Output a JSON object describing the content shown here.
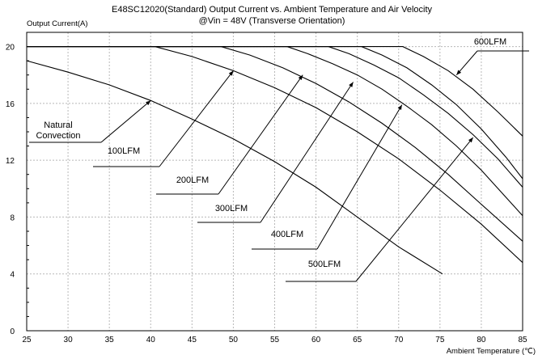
{
  "chart_data": {
    "type": "line",
    "title": "E48SC12020(Standard) Output Current vs. Ambient Temperature and Air Velocity",
    "subtitle": "@Vin = 48V (Transverse Orientation)",
    "xlabel": "Ambient Temperature (℃)",
    "ylabel": "Output Current(A)",
    "xlim": [
      25,
      85
    ],
    "ylim": [
      0,
      21
    ],
    "xticks": [
      "25",
      "30",
      "35",
      "40",
      "45",
      "50",
      "55",
      "60",
      "65",
      "70",
      "75",
      "80",
      "85"
    ],
    "yticks": [
      "0",
      "4",
      "8",
      "12",
      "16",
      "20"
    ],
    "grid": true,
    "series": [
      {
        "name": "Natural Convection",
        "label_lines": [
          "Natural",
          "Convection"
        ],
        "x": [
          25,
          30,
          35,
          40,
          45,
          50,
          55,
          60,
          65,
          70,
          75.3
        ],
        "y": [
          19.0,
          18.2,
          17.3,
          16.2,
          14.9,
          13.5,
          11.9,
          10.1,
          8.0,
          5.9,
          4.0
        ]
      },
      {
        "name": "100LFM",
        "x": [
          25,
          40.5,
          45,
          50,
          55,
          60,
          65,
          70,
          75,
          80,
          85
        ],
        "y": [
          20,
          20,
          19.3,
          18.3,
          17.1,
          15.7,
          14.0,
          12.1,
          9.9,
          7.5,
          4.8
        ]
      },
      {
        "name": "200LFM",
        "x": [
          25,
          48.5,
          52,
          56,
          60,
          64,
          68,
          72,
          76,
          80,
          85
        ],
        "y": [
          20,
          20,
          19.4,
          18.5,
          17.4,
          16.1,
          14.6,
          12.9,
          11.0,
          8.9,
          6.3
        ]
      },
      {
        "name": "300LFM",
        "x": [
          25,
          56.5,
          59,
          62,
          65,
          68,
          71,
          74,
          77,
          80,
          85
        ],
        "y": [
          20,
          20,
          19.5,
          18.8,
          18.0,
          17.0,
          15.8,
          14.5,
          13.0,
          11.3,
          8.1
        ]
      },
      {
        "name": "400LFM",
        "x": [
          25,
          61.5,
          64,
          67,
          70,
          73,
          76,
          79,
          82,
          85
        ],
        "y": [
          20,
          20,
          19.5,
          18.7,
          17.8,
          16.6,
          15.3,
          13.8,
          12.1,
          10.1
        ]
      },
      {
        "name": "500LFM",
        "x": [
          25,
          65.5,
          68,
          71,
          74,
          77,
          80,
          83,
          85
        ],
        "y": [
          20,
          20,
          19.4,
          18.5,
          17.3,
          15.9,
          14.2,
          12.2,
          10.7
        ]
      },
      {
        "name": "600LFM",
        "x": [
          25,
          70.5,
          73,
          76,
          79,
          82,
          85
        ],
        "y": [
          20,
          20,
          19.3,
          18.3,
          17.0,
          15.4,
          13.7
        ]
      }
    ]
  }
}
